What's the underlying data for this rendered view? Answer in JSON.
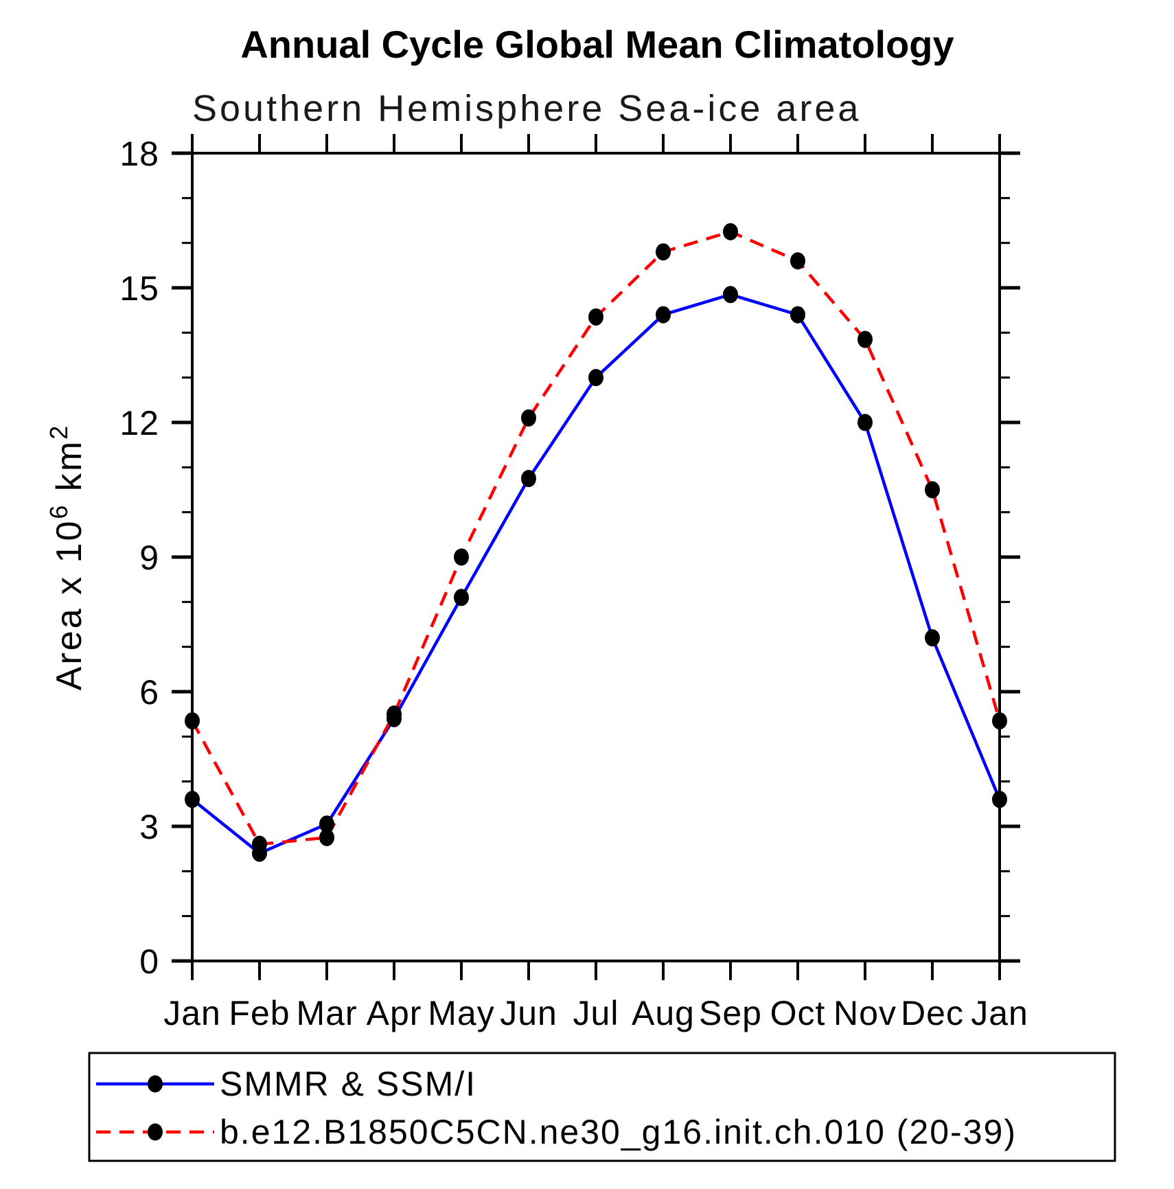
{
  "title": "Annual Cycle Global Mean Climatology",
  "subtitle": "Southern Hemisphere Sea-ice area",
  "colors": {
    "observation_line": "#0000ff",
    "model_line": "#ff0000",
    "marker": "#000000",
    "axis": "#000000",
    "background": "#ffffff"
  },
  "chart_data": {
    "type": "line",
    "categories": [
      "Jan",
      "Feb",
      "Mar",
      "Apr",
      "May",
      "Jun",
      "Jul",
      "Aug",
      "Sep",
      "Oct",
      "Nov",
      "Dec",
      "Jan"
    ],
    "series": [
      {
        "name": "SMMR & SSM/I",
        "color": "#0000ff",
        "style": "solid",
        "marker": "filled-circle",
        "marker_color": "#000000",
        "values": [
          3.6,
          2.4,
          3.05,
          5.4,
          8.1,
          10.75,
          13.0,
          14.4,
          14.85,
          14.4,
          12.0,
          7.2,
          3.6
        ]
      },
      {
        "name": "b.e12.B1850C5CN.ne30_g16.init.ch.010 (20-39)",
        "color": "#ff0000",
        "style": "dashed",
        "marker": "filled-circle",
        "marker_color": "#000000",
        "values": [
          5.35,
          2.6,
          2.75,
          5.5,
          9.0,
          12.1,
          14.35,
          15.8,
          16.25,
          15.6,
          13.85,
          10.5,
          5.35
        ]
      }
    ],
    "ylabel": "Area x 10^6 km^2",
    "ylabel_parts": [
      {
        "text": "Area x 10",
        "sup": false
      },
      {
        "text": "6",
        "sup": true
      },
      {
        "text": " km",
        "sup": false
      },
      {
        "text": "2",
        "sup": true
      }
    ],
    "ylim": [
      0,
      18
    ],
    "ytick_major": [
      0,
      3,
      6,
      9,
      12,
      15,
      18
    ],
    "ytick_minor_step": 1,
    "xlabel": "",
    "grid": false,
    "legend_position": "bottom",
    "tick_direction": "out"
  }
}
